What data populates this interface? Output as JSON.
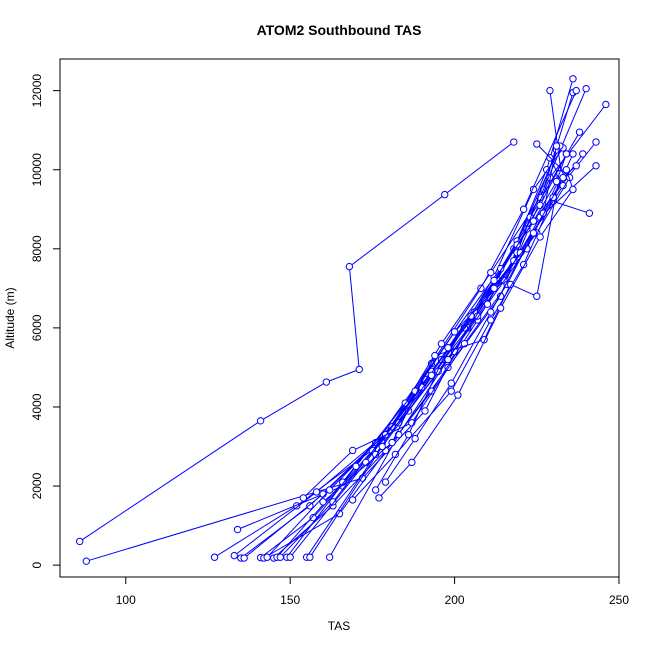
{
  "chart_data": {
    "type": "line",
    "title": "ATOM2 Southbound TAS",
    "xlabel": "TAS",
    "ylabel": "Altitude (m)",
    "xlim": [
      80,
      250
    ],
    "ylim": [
      -300,
      12800
    ],
    "xticks": [
      100,
      150,
      200,
      250
    ],
    "yticks": [
      0,
      2000,
      4000,
      6000,
      8000,
      10000,
      12000
    ],
    "grid": false,
    "legend": "none",
    "color": "#0000ff",
    "markers": "open-circle",
    "series": [
      {
        "x": [
          86,
          141,
          161,
          171,
          168,
          197,
          218
        ],
        "y": [
          600,
          3650,
          4630,
          4950,
          7550,
          9370,
          10700
        ]
      },
      {
        "x": [
          88,
          172,
          191,
          204,
          218,
          228,
          236
        ],
        "y": [
          100,
          2200,
          3900,
          6000,
          8000,
          10000,
          12300
        ]
      },
      {
        "x": [
          127,
          152,
          178,
          197,
          212,
          224,
          233
        ],
        "y": [
          200,
          1500,
          3100,
          5200,
          7300,
          9500,
          10550
        ]
      },
      {
        "x": [
          133,
          158,
          183,
          200,
          213,
          227,
          236
        ],
        "y": [
          240,
          1850,
          3600,
          5400,
          7200,
          9500,
          11950
        ]
      },
      {
        "x": [
          134,
          166,
          186,
          203,
          219,
          229,
          246
        ],
        "y": [
          900,
          2000,
          3900,
          6000,
          7800,
          9800,
          11650
        ]
      },
      {
        "x": [
          135,
          156,
          176,
          193,
          208,
          221,
          237
        ],
        "y": [
          180,
          1500,
          3100,
          5100,
          7000,
          9000,
          12000
        ]
      },
      {
        "x": [
          136,
          160,
          180,
          196,
          211,
          226,
          240
        ],
        "y": [
          180,
          1800,
          3400,
          5600,
          7400,
          9300,
          12050
        ]
      },
      {
        "x": [
          141,
          157,
          175,
          191,
          206,
          219,
          232
        ],
        "y": [
          190,
          1200,
          2900,
          4700,
          6300,
          8200,
          10600
        ]
      },
      {
        "x": [
          142,
          165,
          181,
          198,
          214,
          223,
          238
        ],
        "y": [
          180,
          1300,
          3100,
          5000,
          6800,
          8800,
          10950
        ]
      },
      {
        "x": [
          143,
          162,
          181,
          196,
          209,
          222,
          243
        ],
        "y": [
          200,
          1900,
          3500,
          5200,
          6700,
          8500,
          10700
        ]
      },
      {
        "x": [
          145,
          163,
          179,
          193,
          207,
          219,
          231
        ],
        "y": [
          180,
          1500,
          2900,
          4400,
          6200,
          7900,
          10500
        ]
      },
      {
        "x": [
          146,
          166,
          185,
          200,
          214,
          226,
          234
        ],
        "y": [
          200,
          2100,
          4100,
          5900,
          7500,
          9100,
          10400
        ]
      },
      {
        "x": [
          147,
          163,
          179,
          193,
          206,
          219,
          239
        ],
        "y": [
          200,
          1600,
          3300,
          4900,
          6400,
          8100,
          10400
        ]
      },
      {
        "x": [
          149,
          170,
          188,
          200,
          215,
          226,
          243
        ],
        "y": [
          200,
          2500,
          4400,
          5900,
          7200,
          8800,
          10100
        ]
      },
      {
        "x": [
          150,
          173,
          190,
          205,
          218,
          230,
          241
        ],
        "y": [
          200,
          2600,
          4500,
          6300,
          7700,
          9200,
          8900
        ]
      },
      {
        "x": [
          155,
          176,
          193,
          207,
          220,
          233,
          229
        ],
        "y": [
          200,
          2800,
          4800,
          6300,
          7900,
          9600,
          12000
        ]
      },
      {
        "x": [
          156,
          178,
          195,
          210,
          222,
          232,
          229
        ],
        "y": [
          200,
          3000,
          4900,
          6600,
          8000,
          9800,
          10300
        ]
      },
      {
        "x": [
          162,
          183,
          198,
          212,
          225,
          235,
          225
        ],
        "y": [
          200,
          3300,
          5200,
          7000,
          8400,
          9800,
          10650
        ]
      },
      {
        "x": [
          154,
          169,
          187,
          203,
          216,
          227,
          231
        ],
        "y": [
          1700,
          2900,
          3600,
          5600,
          7100,
          8900,
          10600
        ]
      },
      {
        "x": [
          160,
          181,
          194,
          209,
          217,
          225,
          232
        ],
        "y": [
          1600,
          3100,
          5300,
          5700,
          7100,
          6800,
          9900
        ]
      },
      {
        "x": [
          169,
          182,
          199,
          211,
          221,
          230,
          236
        ],
        "y": [
          1650,
          2800,
          4400,
          6200,
          7600,
          9300,
          10400
        ]
      },
      {
        "x": [
          176,
          186,
          198,
          212,
          224,
          231,
          234
        ],
        "y": [
          1900,
          3300,
          5500,
          7200,
          8700,
          9700,
          10400
        ]
      },
      {
        "x": [
          177,
          187,
          201,
          214,
          226,
          236,
          234
        ],
        "y": [
          1700,
          2600,
          4300,
          6500,
          8300,
          9500,
          10000
        ]
      },
      {
        "x": [
          179,
          188,
          199,
          211,
          224,
          233,
          237
        ],
        "y": [
          2100,
          3200,
          4600,
          6400,
          8400,
          9800,
          10100
        ]
      }
    ]
  }
}
